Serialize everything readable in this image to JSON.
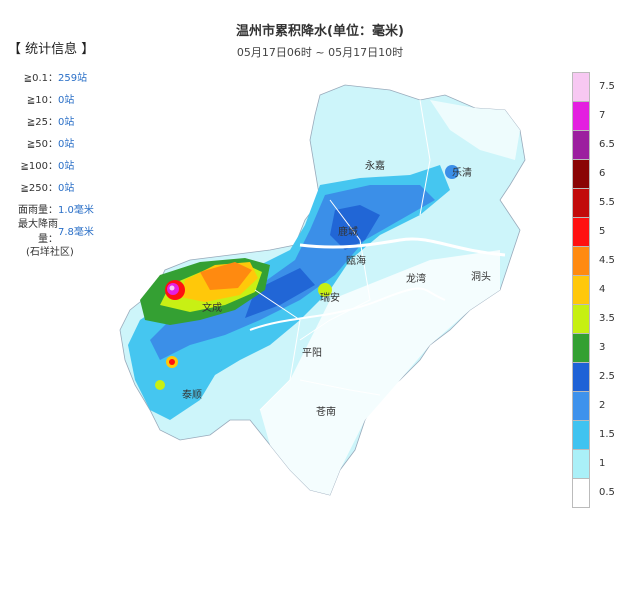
{
  "title": "温州市累积降水(单位：毫米)",
  "subtitle": "05月17日06时 ~ 05月17日10时",
  "stats": {
    "heading": "【 统计信息 】",
    "rows": [
      {
        "label": "≧0.1：",
        "value": "259站"
      },
      {
        "label": "≧10：",
        "value": "0站"
      },
      {
        "label": "≧25：",
        "value": "0站"
      },
      {
        "label": "≧50：",
        "value": "0站"
      },
      {
        "label": "≧100：",
        "value": "0站"
      },
      {
        "label": "≧250：",
        "value": "0站"
      },
      {
        "label": "面雨量：",
        "value": "1.0毫米"
      },
      {
        "label": "最大降雨量：",
        "value": "7.8毫米"
      }
    ],
    "note": "(石垟社区)"
  },
  "places": [
    {
      "name": "永嘉"
    },
    {
      "name": "乐清"
    },
    {
      "name": "鹿城"
    },
    {
      "name": "瓯海"
    },
    {
      "name": "龙湾"
    },
    {
      "name": "洞头"
    },
    {
      "name": "文成"
    },
    {
      "name": "瑞安"
    },
    {
      "name": "平阳"
    },
    {
      "name": "泰顺"
    },
    {
      "name": "苍南"
    }
  ],
  "legend": {
    "items": [
      {
        "label": "7.5",
        "color": "#f7c8f2"
      },
      {
        "label": "7",
        "color": "#e41fe0"
      },
      {
        "label": "6.5",
        "color": "#9c1f9f"
      },
      {
        "label": "6",
        "color": "#8a0505"
      },
      {
        "label": "5.5",
        "color": "#c20a0a"
      },
      {
        "label": "5",
        "color": "#ff1010"
      },
      {
        "label": "4.5",
        "color": "#ff8a10"
      },
      {
        "label": "4",
        "color": "#ffc80a"
      },
      {
        "label": "3.5",
        "color": "#c6f012"
      },
      {
        "label": "3",
        "color": "#33a032"
      },
      {
        "label": "2.5",
        "color": "#1e62d6"
      },
      {
        "label": "2",
        "color": "#3e92ec"
      },
      {
        "label": "1.5",
        "color": "#3fc3f0"
      },
      {
        "label": "1",
        "color": "#aaf0f8"
      },
      {
        "label": "0.5",
        "color": "#ffffff"
      }
    ]
  }
}
